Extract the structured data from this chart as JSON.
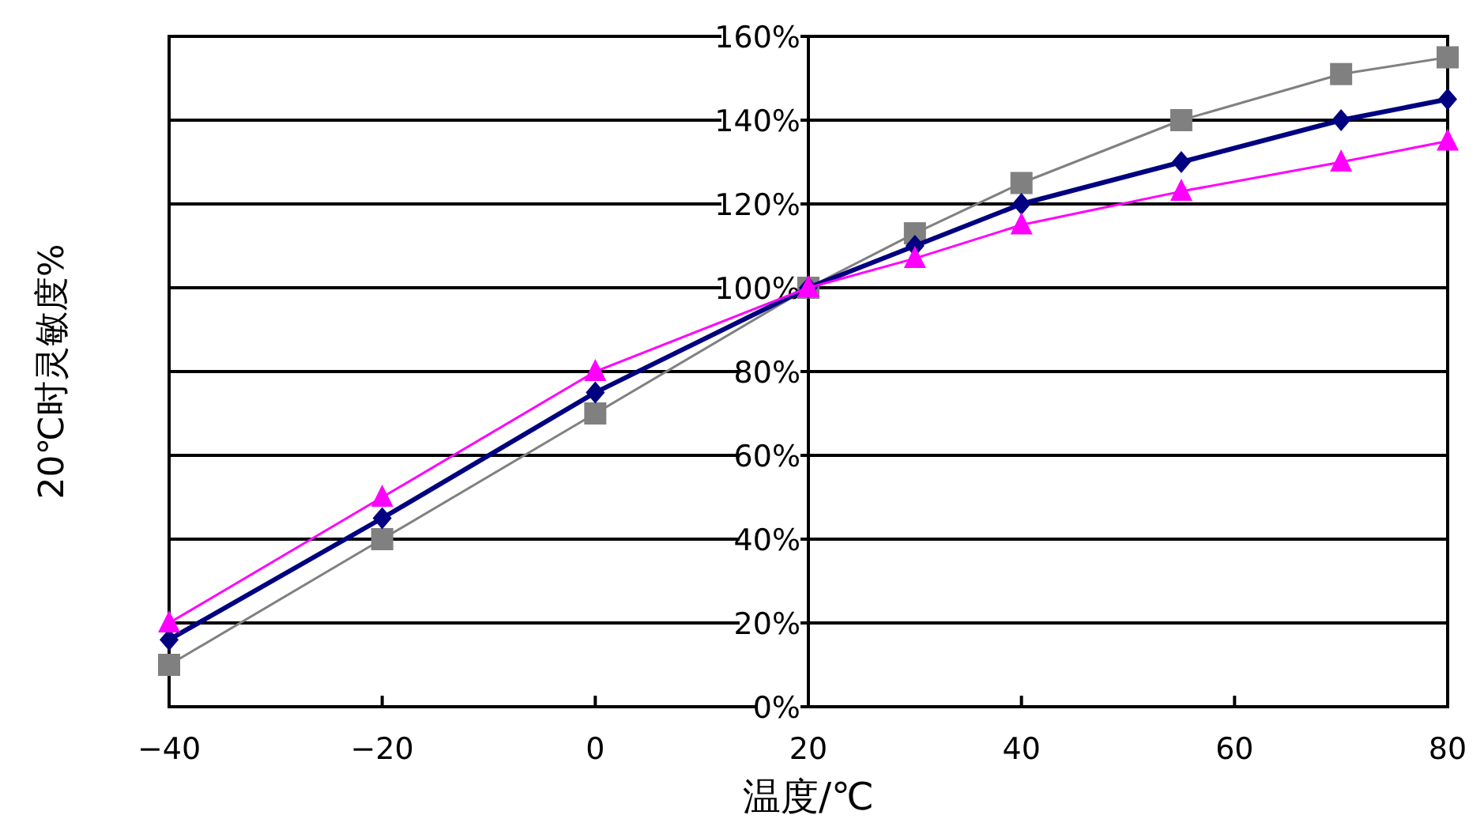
{
  "chart_data": {
    "type": "line",
    "xlabel": "温度/℃",
    "ylabel": "20℃时灵敏度%",
    "x": [
      -40,
      -20,
      0,
      20,
      30,
      40,
      55,
      70,
      80
    ],
    "series": [
      {
        "color": "#808080",
        "marker": "square",
        "values": [
          10,
          40,
          70,
          100,
          113,
          125,
          140,
          151,
          155
        ]
      },
      {
        "color": "#000080",
        "marker": "diamond",
        "values": [
          16,
          45,
          75,
          100,
          110,
          120,
          130,
          140,
          145
        ]
      },
      {
        "color": "#ff00ff",
        "marker": "triangle",
        "values": [
          20,
          50,
          80,
          100,
          107,
          115,
          123,
          130,
          135
        ]
      }
    ],
    "xlim": [
      -40,
      80
    ],
    "xticks": [
      -40,
      -20,
      0,
      20,
      40,
      60,
      80
    ],
    "ylim": [
      0,
      160
    ],
    "yticks": [
      {
        "value": 0,
        "label": "0%"
      },
      {
        "value": 20,
        "label": "20%"
      },
      {
        "value": 40,
        "label": "40%"
      },
      {
        "value": 60,
        "label": "60%"
      },
      {
        "value": 80,
        "label": "80%"
      },
      {
        "value": 100,
        "label": "100%"
      },
      {
        "value": 120,
        "label": "120%"
      },
      {
        "value": 140,
        "label": "140%"
      },
      {
        "value": 160,
        "label": "160%"
      }
    ],
    "grid": "y",
    "line_style": "solid"
  }
}
